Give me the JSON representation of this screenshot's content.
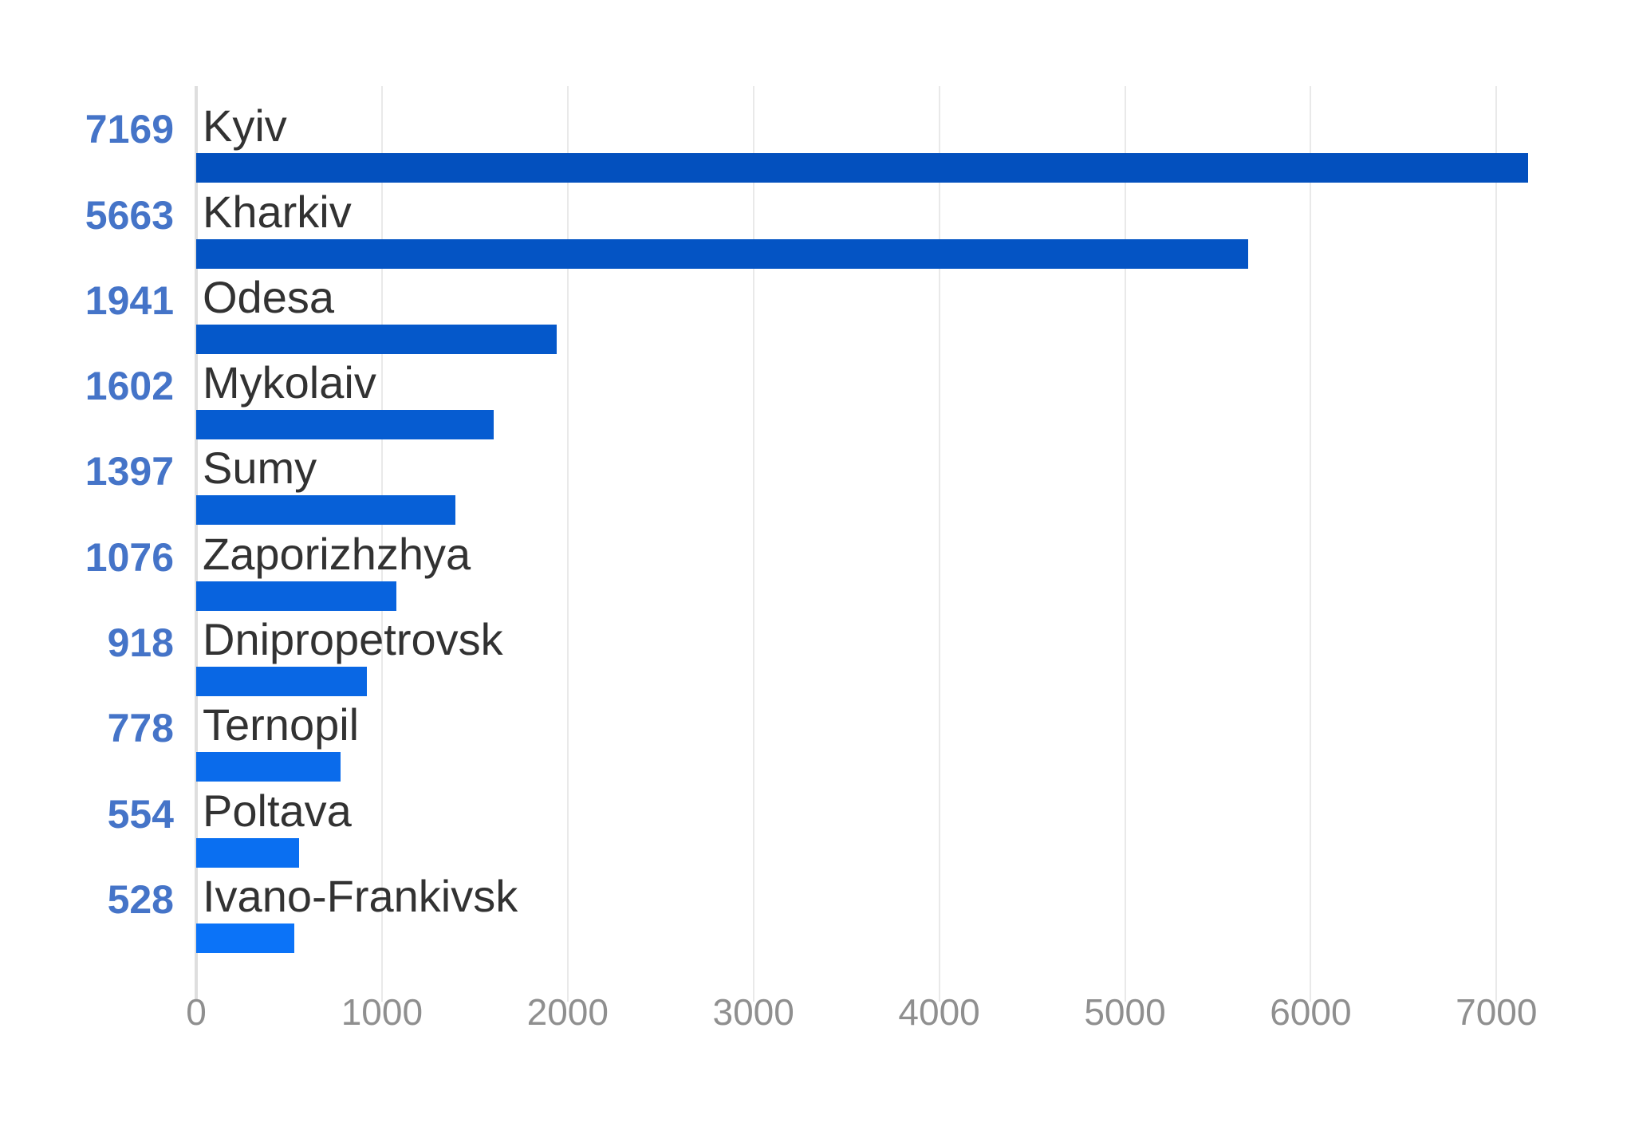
{
  "chart_data": {
    "type": "bar",
    "orientation": "horizontal",
    "categories": [
      "Kyiv",
      "Kharkiv",
      "Odesa",
      "Mykolaiv",
      "Sumy",
      "Zaporizhzhya",
      "Dnipropetrovsk",
      "Ternopil",
      "Poltava",
      "Ivano-Frankivsk"
    ],
    "values": [
      7169,
      5663,
      1941,
      1602,
      1397,
      1076,
      918,
      778,
      554,
      528
    ],
    "value_labels": [
      "7169",
      "5663",
      "1941",
      "1602",
      "1397",
      "1076",
      "918",
      "778",
      "554",
      "528"
    ],
    "x_ticks": [
      0,
      1000,
      2000,
      3000,
      4000,
      5000,
      6000,
      7000
    ],
    "x_tick_labels": [
      "0",
      "1000",
      "2000",
      "3000",
      "4000",
      "5000",
      "6000",
      "7000"
    ],
    "xlim": [
      0,
      7700
    ],
    "grid": "vertical-gridlines-on",
    "legend": "none",
    "bar_colors": [
      "#0350BE",
      "#0454C4",
      "#0558CA",
      "#065CD1",
      "#0760D7",
      "#0863DE",
      "#0967E4",
      "#0A6BEB",
      "#0A6FF1",
      "#0B73F8"
    ],
    "value_label_color": "#4574C8",
    "category_label_color": "#323232",
    "tick_label_color": "#8F8F8F",
    "gridline_color": "#E9E9E9",
    "axis_line_color": "#DEDEDE",
    "background_color": "#FFFFFF"
  }
}
